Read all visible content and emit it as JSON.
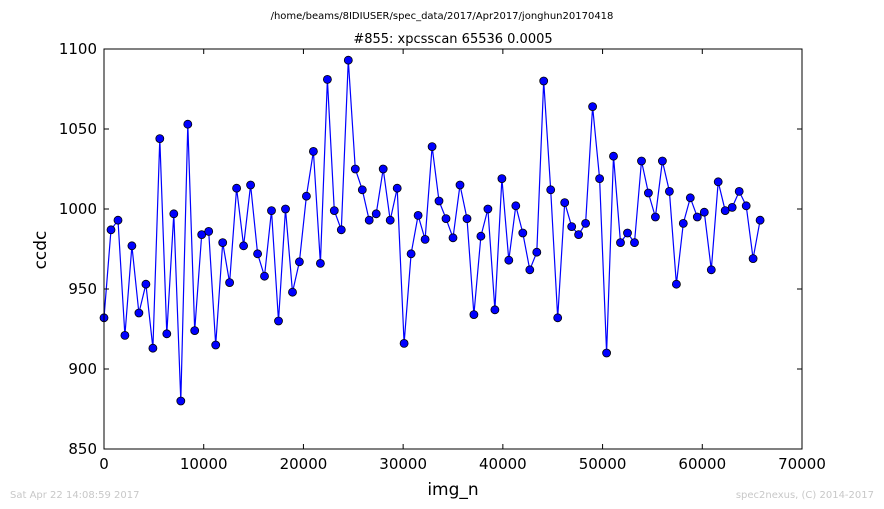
{
  "header": {
    "path": "/home/beams/8IDIUSER/spec_data/2017/Apr2017/jonghun20170418",
    "title": "#855: xpcsscan 65536 0.0005"
  },
  "footer": {
    "left": "Sat Apr 22 14:08:59 2017",
    "right": "spec2nexus, (C) 2014-2017"
  },
  "colors": {
    "series": "#0000ff",
    "marker_fill": "#0000ff",
    "marker_edge": "#000000",
    "footer_text": "#c8c8c8"
  },
  "chart_data": {
    "type": "line",
    "title": "#855: xpcsscan 65536 0.0005",
    "xlabel": "img_n",
    "ylabel": "ccdc",
    "xlim": [
      0,
      70000
    ],
    "ylim": [
      850,
      1100
    ],
    "xticks": [
      0,
      10000,
      20000,
      30000,
      40000,
      50000,
      60000,
      70000
    ],
    "yticks": [
      850,
      900,
      950,
      1000,
      1050,
      1100
    ],
    "grid": false,
    "markers": true,
    "series": [
      {
        "x": [
          0,
          700,
          1400,
          2100,
          2800,
          3500,
          4200,
          4900,
          5600,
          6300,
          7000,
          7700,
          8400,
          9100,
          9800,
          10500,
          11200,
          11900,
          12600,
          13300,
          14000,
          14700,
          15400,
          16100,
          16800,
          17500,
          18200,
          18900,
          19600,
          20300,
          21000,
          21700,
          22400,
          23100,
          23800,
          24500,
          25200,
          25900,
          26600,
          27300,
          28000,
          28700,
          29400,
          30100,
          30800,
          31500,
          32200,
          32900,
          33600,
          34300,
          35000,
          35700,
          36400,
          37100,
          37800,
          38500,
          39200,
          39900,
          40600,
          41300,
          42000,
          42700,
          43400,
          44100,
          44800,
          45500,
          46200,
          46900,
          47600,
          48300,
          49000,
          49700,
          50400,
          51100,
          51800,
          52500,
          53200,
          53900,
          54600,
          55300,
          56000,
          56700,
          57400,
          58100,
          58800,
          59500,
          60200,
          60900,
          61600,
          62300,
          63000,
          63700,
          64400,
          65100,
          65800
        ],
        "values": [
          932,
          987,
          993,
          921,
          977,
          935,
          953,
          913,
          1044,
          922,
          997,
          880,
          1053,
          924,
          984,
          986,
          915,
          979,
          954,
          1013,
          977,
          1015,
          972,
          958,
          999,
          930,
          1000,
          948,
          967,
          1008,
          1036,
          966,
          1081,
          999,
          987,
          1093,
          1025,
          1012,
          993,
          997,
          1025,
          993,
          1013,
          916,
          972,
          996,
          981,
          1039,
          1005,
          994,
          982,
          1015,
          994,
          934,
          983,
          1000,
          937,
          1019,
          968,
          1002,
          985,
          962,
          973,
          1080,
          1012,
          932,
          1004,
          989,
          984,
          991,
          1064,
          1019,
          910,
          1033,
          979,
          985,
          979,
          1030,
          1010,
          995,
          1030,
          1011,
          953,
          991,
          1007,
          995,
          998,
          962,
          1017,
          999,
          1001,
          1011,
          1002,
          969,
          993
        ]
      }
    ]
  }
}
